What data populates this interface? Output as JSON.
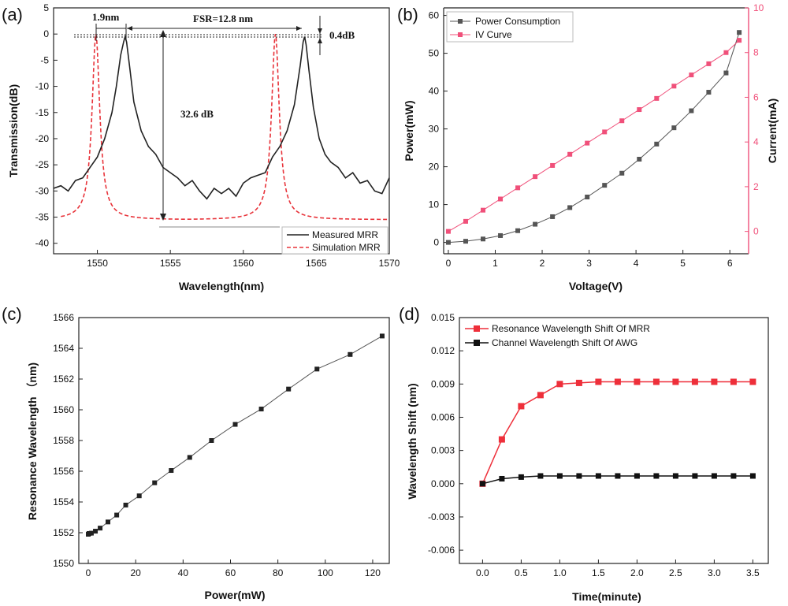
{
  "chart_data": [
    {
      "type": "line",
      "panel_label": "(a)",
      "xlabel": "Wavelength(nm)",
      "ylabel": "Transmission(dB)",
      "xlim": [
        1547,
        1570
      ],
      "ylim": [
        -42,
        5
      ],
      "xticks": [
        1550,
        1555,
        1560,
        1565,
        1570
      ],
      "yticks": [
        5,
        0,
        -5,
        -10,
        -15,
        -20,
        -25,
        -30,
        -35,
        -40
      ],
      "legend": [
        "Measured MRR",
        "Simulation MRR"
      ],
      "legend_position": "bottom-right",
      "series": [
        {
          "name": "Measured MRR",
          "style": "solid",
          "color": "#222222",
          "x": [
            1547.0,
            1547.5,
            1548.0,
            1548.5,
            1549.0,
            1549.5,
            1550.0,
            1550.5,
            1551.0,
            1551.3,
            1551.6,
            1551.8,
            1551.9,
            1552.0,
            1552.2,
            1552.5,
            1553.0,
            1553.5,
            1554.0,
            1554.5,
            1555.0,
            1555.5,
            1556.0,
            1556.5,
            1557.0,
            1557.5,
            1558.0,
            1558.5,
            1559.0,
            1559.5,
            1560.0,
            1560.5,
            1561.0,
            1561.5,
            1562.0,
            1562.5,
            1563.0,
            1563.5,
            1563.9,
            1564.1,
            1564.2,
            1564.3,
            1564.5,
            1564.8,
            1565.2,
            1565.6,
            1566.0,
            1566.5,
            1567.0,
            1567.5,
            1568.0,
            1568.5,
            1569.0,
            1569.5,
            1570.0
          ],
          "y": [
            -29.5,
            -29,
            -30,
            -28,
            -27.5,
            -25.5,
            -23.5,
            -20,
            -15,
            -10,
            -4,
            -1.5,
            -0.5,
            -1.5,
            -6,
            -13,
            -18.5,
            -21.5,
            -23,
            -25.5,
            -26.5,
            -27.5,
            -29,
            -28,
            -30,
            -31.5,
            -29.5,
            -30.5,
            -29.5,
            -31,
            -28.5,
            -27.5,
            -27,
            -26.5,
            -23.5,
            -21.5,
            -18.5,
            -13.5,
            -6,
            -1.5,
            -0.5,
            -2,
            -7,
            -14,
            -20,
            -23,
            -24.5,
            -25.5,
            -27.5,
            -26.5,
            -28.5,
            -28,
            -30,
            -30.5,
            -27.5
          ]
        },
        {
          "name": "Simulation MRR",
          "style": "dashed",
          "color": "#e8333a",
          "resonances_nm": [
            1549.9,
            1562.2
          ],
          "min_db": -35.5,
          "peak_db": 0
        }
      ],
      "annotations": [
        "1.9nm",
        "FSR=12.8 nm",
        "0.4dB",
        "32.6 dB"
      ]
    },
    {
      "type": "line",
      "panel_label": "(b)",
      "xlabel": "Voltage(V)",
      "ylabel": "Power(mW)",
      "ylabel_right": "Current(mA)",
      "xlim": [
        -0.1,
        6.4
      ],
      "ylim": [
        -3,
        62
      ],
      "ylim_right": [
        -1,
        10
      ],
      "xticks": [
        0,
        1,
        2,
        3,
        4,
        5,
        6
      ],
      "yticks": [
        0,
        10,
        20,
        30,
        40,
        50,
        60
      ],
      "yticks_right": [
        0,
        2,
        4,
        6,
        8,
        10
      ],
      "legend": [
        "Power Consumption",
        "IV Curve"
      ],
      "legend_position": "top-left",
      "series": [
        {
          "name": "Power Consumption",
          "axis": "left",
          "color": "#555555",
          "x": [
            0,
            0.37,
            0.74,
            1.11,
            1.48,
            1.85,
            2.22,
            2.59,
            2.96,
            3.33,
            3.7,
            4.07,
            4.44,
            4.81,
            5.18,
            5.55,
            5.92,
            6.2
          ],
          "y": [
            0,
            0.3,
            0.9,
            1.8,
            3.1,
            4.8,
            6.8,
            9.2,
            12,
            15.1,
            18.3,
            22,
            26,
            30.3,
            34.8,
            39.7,
            44.8,
            55.5
          ]
        },
        {
          "name": "IV Curve",
          "axis": "right",
          "color": "#f0507a",
          "x": [
            0,
            0.37,
            0.74,
            1.11,
            1.48,
            1.85,
            2.22,
            2.59,
            2.96,
            3.33,
            3.7,
            4.07,
            4.44,
            4.81,
            5.18,
            5.55,
            5.92,
            6.2
          ],
          "y": [
            0.0,
            0.45,
            0.95,
            1.45,
            1.95,
            2.45,
            2.95,
            3.45,
            3.95,
            4.45,
            4.95,
            5.45,
            5.95,
            6.5,
            7.0,
            7.5,
            8.0,
            8.55
          ]
        }
      ]
    },
    {
      "type": "line",
      "panel_label": "(c)",
      "xlabel": "Power(mW)",
      "ylabel": "Resonance Wavelength （nm)",
      "xlim": [
        -4,
        127
      ],
      "ylim": [
        1550,
        1566
      ],
      "xticks": [
        0,
        20,
        40,
        60,
        80,
        100,
        120
      ],
      "yticks": [
        1550,
        1552,
        1554,
        1556,
        1558,
        1560,
        1562,
        1564,
        1566
      ],
      "series": [
        {
          "name": "Resonance Wavelength",
          "color": "#222222",
          "x": [
            0,
            0.3,
            1.3,
            3,
            5,
            8.3,
            12,
            15.8,
            21.5,
            28,
            35,
            42.8,
            52,
            62,
            73,
            84.5,
            96.5,
            110.5,
            124
          ],
          "y": [
            1551.9,
            1551.95,
            1551.97,
            1552.1,
            1552.3,
            1552.7,
            1553.15,
            1553.8,
            1554.4,
            1555.25,
            1556.05,
            1556.9,
            1558.0,
            1559.05,
            1560.05,
            1561.35,
            1562.65,
            1563.6,
            1564.8
          ]
        }
      ]
    },
    {
      "type": "line",
      "panel_label": "(d)",
      "xlabel": "Time(minute)",
      "ylabel": "Wavelength Shift (nm)",
      "xlim": [
        -0.3,
        3.7
      ],
      "ylim": [
        -0.0072,
        0.015
      ],
      "xticks": [
        "0.0",
        "0.5",
        "1.0",
        "1.5",
        "2.0",
        "2.5",
        "3.0",
        "3.5"
      ],
      "yticks": [
        "0.015",
        "0.012",
        "0.009",
        "0.006",
        "0.003",
        "0.000",
        "-0.003",
        "-0.006"
      ],
      "legend": [
        "Resonance Wavelength Shift Of MRR",
        "Channel Wavelength Shift Of AWG"
      ],
      "legend_position": "top-left",
      "series": [
        {
          "name": "Resonance Wavelength Shift Of MRR",
          "color": "#ee2f3a",
          "x": [
            0,
            0.25,
            0.5,
            0.75,
            1.0,
            1.25,
            1.5,
            1.75,
            2.0,
            2.25,
            2.5,
            2.75,
            3.0,
            3.25,
            3.5
          ],
          "y": [
            0,
            0.004,
            0.007,
            0.008,
            0.009,
            0.0091,
            0.0092,
            0.0092,
            0.0092,
            0.0092,
            0.0092,
            0.0092,
            0.0092,
            0.0092,
            0.0092
          ]
        },
        {
          "name": "Channel Wavelength Shift Of AWG",
          "color": "#111111",
          "x": [
            0,
            0.25,
            0.5,
            0.75,
            1.0,
            1.25,
            1.5,
            1.75,
            2.0,
            2.25,
            2.5,
            2.75,
            3.0,
            3.25,
            3.5
          ],
          "y": [
            0,
            0.00045,
            0.0006,
            0.0007,
            0.0007,
            0.0007,
            0.0007,
            0.0007,
            0.0007,
            0.0007,
            0.0007,
            0.0007,
            0.0007,
            0.0007,
            0.0007
          ]
        }
      ]
    }
  ]
}
